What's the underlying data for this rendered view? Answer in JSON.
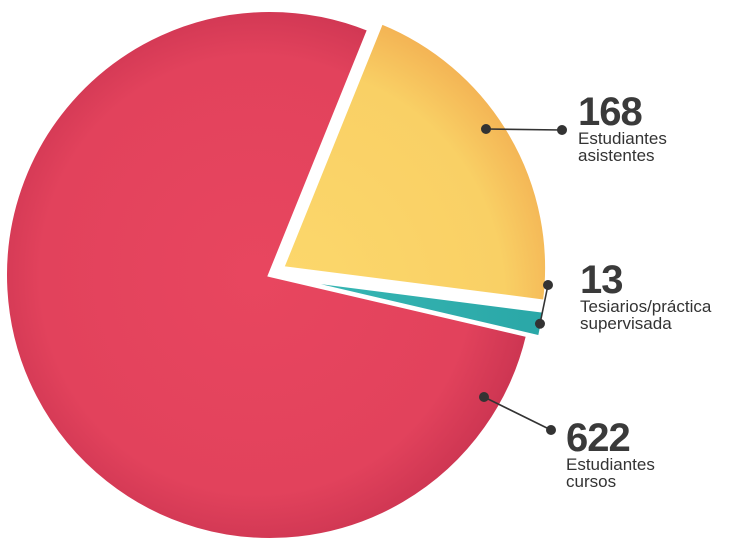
{
  "chart_data": {
    "type": "pie",
    "slices": [
      {
        "value": 168,
        "label_line1": "Estudiantes",
        "label_line2": "asistentes",
        "color": "#F9D26A"
      },
      {
        "value": 13,
        "label_line1": "Tesiarios/práctica",
        "label_line2": "supervisada",
        "color": "#33B3B3"
      },
      {
        "value": 622,
        "label_line1": "Estudiantes",
        "label_line2": "cursos",
        "color": "#E5435F"
      }
    ]
  }
}
